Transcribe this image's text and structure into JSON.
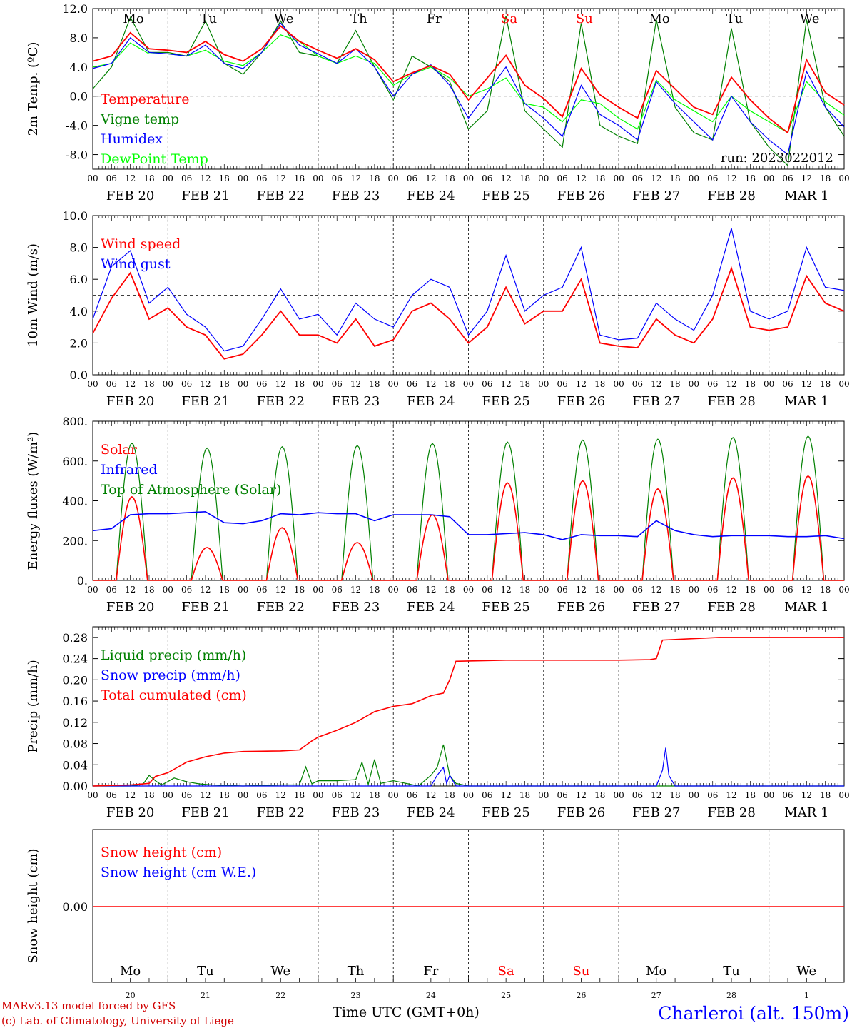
{
  "colors": {
    "temperature": "#ff0000",
    "vigne": "#008000",
    "humidex": "#0000ff",
    "dewpoint": "#00ff00",
    "frame": "#000000",
    "weekend": "#ff0000",
    "snow_cm": "#ff0000",
    "snow_we": "#0000ff",
    "station": "#0000ff"
  },
  "time_axis": {
    "hour_ticks": [
      "00",
      "06",
      "12",
      "18"
    ],
    "date_labels": [
      "FEB 20",
      "FEB 21",
      "FEB 22",
      "FEB 23",
      "FEB 24",
      "FEB 25",
      "FEB 26",
      "FEB 27",
      "FEB 28",
      "MAR  1"
    ],
    "weekdays": [
      "Mo",
      "Tu",
      "We",
      "Th",
      "Fr",
      "Sa",
      "Su",
      "Mo",
      "Tu",
      "We"
    ],
    "weekend_flags": [
      false,
      false,
      false,
      false,
      false,
      true,
      true,
      false,
      false,
      false
    ],
    "day_numbers": [
      "20",
      "21",
      "22",
      "23",
      "24",
      "25",
      "26",
      "27",
      "28",
      "1"
    ],
    "xlabel": "Time UTC (GMT+0h)"
  },
  "footer": {
    "model_line": "MARv3.13 model forced by GFS",
    "lab_line": "(c) Lab. of Climatology, University of Liege",
    "station": "Charleroi (alt. 150m)"
  },
  "chart_data": [
    {
      "type": "line",
      "id": "temperature",
      "ylabel": "2m Temp. (ºC)",
      "ylim": [
        -10,
        12
      ],
      "yticks": [
        "-8.0",
        "-4.0",
        "0.0",
        "4.0",
        "8.0",
        "12.0"
      ],
      "annotation": "run: 2023022012",
      "x_unit": "hours since FEB 20 00 UTC",
      "series": [
        {
          "name": "Temperature",
          "color": "#ff0000",
          "x": [
            0,
            6,
            12,
            18,
            24,
            30,
            36,
            42,
            48,
            54,
            60,
            66,
            72,
            78,
            84,
            90,
            96,
            102,
            108,
            114,
            120,
            126,
            132,
            138,
            144,
            150,
            156,
            162,
            168,
            174,
            180,
            186,
            192,
            198,
            204,
            210,
            216,
            222,
            228,
            234,
            240
          ],
          "y": [
            4.8,
            5.5,
            8.7,
            6.5,
            6.3,
            6.0,
            7.5,
            5.7,
            4.8,
            6.5,
            9.6,
            7.5,
            6.3,
            5.2,
            6.5,
            5.0,
            2.0,
            3.2,
            4.2,
            3.0,
            -0.5,
            2.5,
            5.6,
            1.5,
            -0.3,
            -2.8,
            3.8,
            0.2,
            -1.5,
            -3.0,
            3.5,
            1.0,
            -1.5,
            -2.5,
            2.6,
            -0.5,
            -3.0,
            -5.0,
            5.0,
            0.5,
            -1.2
          ]
        },
        {
          "name": "Vigne temp",
          "color": "#008000",
          "x": [
            0,
            6,
            12,
            18,
            24,
            30,
            36,
            42,
            48,
            54,
            60,
            66,
            72,
            78,
            84,
            90,
            96,
            102,
            108,
            114,
            120,
            126,
            132,
            138,
            144,
            150,
            156,
            162,
            168,
            174,
            180,
            186,
            192,
            198,
            204,
            210,
            216,
            222,
            228,
            234,
            240
          ],
          "y": [
            1.0,
            4.0,
            10.8,
            6.0,
            6.0,
            5.5,
            10.3,
            4.5,
            3.0,
            6.0,
            10.3,
            6.0,
            5.5,
            4.5,
            9.0,
            4.0,
            -0.5,
            5.5,
            4.0,
            2.0,
            -4.5,
            -2.0,
            11.0,
            -2.0,
            -4.5,
            -7.0,
            10.0,
            -4.0,
            -5.5,
            -6.5,
            10.5,
            -1.5,
            -5.0,
            -6.0,
            9.3,
            -3.5,
            -7.0,
            -9.5,
            10.5,
            -1.5,
            -5.5
          ]
        },
        {
          "name": "Humidex",
          "color": "#0000ff",
          "x": [
            0,
            6,
            12,
            18,
            24,
            30,
            36,
            42,
            48,
            54,
            60,
            66,
            72,
            78,
            84,
            90,
            96,
            102,
            108,
            114,
            120,
            126,
            132,
            138,
            144,
            150,
            156,
            162,
            168,
            174,
            180,
            186,
            192,
            198,
            204,
            210,
            216,
            222,
            228,
            234,
            240
          ],
          "y": [
            3.8,
            4.5,
            8.0,
            6.0,
            5.8,
            5.5,
            7.0,
            4.5,
            3.8,
            6.0,
            10.0,
            7.0,
            5.8,
            4.5,
            6.5,
            4.0,
            0.0,
            3.0,
            4.3,
            1.5,
            -3.0,
            0.5,
            4.0,
            -1.0,
            -3.0,
            -5.5,
            1.5,
            -2.5,
            -4.0,
            -6.0,
            2.0,
            -1.0,
            -3.5,
            -6.0,
            0.0,
            -3.5,
            -6.0,
            -8.0,
            3.4,
            -1.5,
            -4.2
          ]
        },
        {
          "name": "DewPoint Temp",
          "color": "#00ff00",
          "x": [
            0,
            6,
            12,
            18,
            24,
            30,
            36,
            42,
            48,
            54,
            60,
            66,
            72,
            78,
            84,
            90,
            96,
            102,
            108,
            114,
            120,
            126,
            132,
            138,
            144,
            150,
            156,
            162,
            168,
            174,
            180,
            186,
            192,
            198,
            204,
            210,
            216,
            222,
            228,
            234,
            240
          ],
          "y": [
            4.0,
            4.5,
            7.3,
            5.8,
            5.8,
            5.5,
            6.3,
            4.8,
            4.2,
            6.0,
            8.4,
            7.5,
            5.5,
            4.5,
            5.5,
            4.5,
            1.5,
            3.0,
            4.0,
            2.5,
            0.0,
            1.0,
            2.5,
            -1.0,
            -1.5,
            -3.5,
            -0.5,
            -1.0,
            -3.0,
            -4.5,
            2.2,
            -0.5,
            -2.0,
            -3.5,
            0.0,
            -2.0,
            -3.5,
            -5.0,
            2.0,
            -0.8,
            -2.6
          ]
        }
      ]
    },
    {
      "type": "line",
      "id": "wind",
      "ylabel": "10m Wind (m/s)",
      "ylim": [
        0,
        10
      ],
      "yticks": [
        "0.0",
        "2.0",
        "4.0",
        "6.0",
        "8.0",
        "10.0"
      ],
      "x_unit": "hours since FEB 20 00 UTC",
      "series": [
        {
          "name": "Wind speed",
          "color": "#ff0000",
          "x": [
            0,
            6,
            12,
            18,
            24,
            30,
            36,
            42,
            48,
            54,
            60,
            66,
            72,
            78,
            84,
            90,
            96,
            102,
            108,
            114,
            120,
            126,
            132,
            138,
            144,
            150,
            156,
            162,
            168,
            174,
            180,
            186,
            192,
            198,
            204,
            210,
            216,
            222,
            228,
            234,
            240
          ],
          "y": [
            2.6,
            4.8,
            6.4,
            3.5,
            4.2,
            3.0,
            2.5,
            1.0,
            1.3,
            2.5,
            4.0,
            2.5,
            2.5,
            2.0,
            3.5,
            1.8,
            2.2,
            4.0,
            4.5,
            3.5,
            2.0,
            3.0,
            5.5,
            3.2,
            4.0,
            4.0,
            6.0,
            2.0,
            1.8,
            1.7,
            3.5,
            2.5,
            2.0,
            3.5,
            6.7,
            3.0,
            2.8,
            3.0,
            6.2,
            4.5,
            4.0
          ]
        },
        {
          "name": "Wind gust",
          "color": "#0000ff",
          "x": [
            0,
            6,
            12,
            18,
            24,
            30,
            36,
            42,
            48,
            54,
            60,
            66,
            72,
            78,
            84,
            90,
            96,
            102,
            108,
            114,
            120,
            126,
            132,
            138,
            144,
            150,
            156,
            162,
            168,
            174,
            180,
            186,
            192,
            198,
            204,
            210,
            216,
            222,
            228,
            234,
            240
          ],
          "y": [
            3.5,
            6.8,
            7.8,
            4.5,
            5.5,
            3.8,
            3.0,
            1.5,
            1.8,
            3.5,
            5.4,
            3.5,
            3.8,
            2.5,
            4.5,
            3.5,
            3.0,
            5.0,
            6.0,
            5.5,
            2.5,
            4.0,
            7.5,
            4.0,
            5.0,
            5.5,
            8.0,
            2.5,
            2.2,
            2.3,
            4.5,
            3.5,
            2.8,
            5.0,
            9.2,
            4.0,
            3.5,
            4.0,
            8.0,
            5.5,
            5.3
          ]
        }
      ]
    },
    {
      "type": "line",
      "id": "energy",
      "ylabel": "Energy fluxes (W/m²)",
      "ylim": [
        0,
        800
      ],
      "yticks": [
        "0.",
        "200.",
        "400.",
        "600.",
        "800."
      ],
      "x_unit": "hours since FEB 20 00 UTC",
      "toa_peaks": [
        690,
        665,
        672,
        678,
        688,
        695,
        705,
        710,
        718,
        725
      ],
      "solar_peaks": [
        420,
        165,
        265,
        190,
        330,
        490,
        500,
        460,
        515,
        525
      ],
      "daylight_hours": [
        7.5,
        17.5
      ],
      "series": [
        {
          "name": "Solar",
          "color": "#ff0000"
        },
        {
          "name": "Infrared",
          "color": "#0000ff",
          "x": [
            0,
            6,
            12,
            18,
            24,
            30,
            36,
            42,
            48,
            54,
            60,
            66,
            72,
            78,
            84,
            90,
            96,
            102,
            108,
            114,
            120,
            126,
            132,
            138,
            144,
            150,
            156,
            162,
            168,
            174,
            180,
            186,
            192,
            198,
            204,
            210,
            216,
            222,
            228,
            234,
            240
          ],
          "y": [
            250,
            260,
            330,
            335,
            335,
            340,
            345,
            290,
            285,
            300,
            335,
            330,
            340,
            335,
            335,
            300,
            330,
            330,
            330,
            320,
            230,
            230,
            235,
            240,
            230,
            205,
            230,
            225,
            225,
            220,
            300,
            250,
            230,
            220,
            225,
            225,
            225,
            220,
            220,
            225,
            210
          ]
        },
        {
          "name": "Top of Atmosphere (Solar)",
          "color": "#008000"
        }
      ]
    },
    {
      "type": "line",
      "id": "precip",
      "ylabel": "Precip (mm/h)",
      "ylim": [
        0,
        0.3
      ],
      "yticks": [
        "0.00",
        "0.04",
        "0.08",
        "0.12",
        "0.16",
        "0.20",
        "0.24",
        "0.28"
      ],
      "x_unit": "hours since FEB 20 00 UTC",
      "series": [
        {
          "name": "Liquid precip (mm/h)",
          "color": "#008000",
          "x": [
            0,
            12,
            16,
            18,
            20,
            22,
            26,
            30,
            34,
            38,
            48,
            60,
            66,
            68,
            70,
            72,
            78,
            84,
            86,
            88,
            90,
            92,
            96,
            104,
            108,
            110,
            112,
            114,
            116,
            120,
            240
          ],
          "y": [
            0,
            0,
            0.003,
            0.02,
            0.01,
            0.002,
            0.015,
            0.008,
            0.004,
            0.002,
            0,
            0.002,
            0.002,
            0.036,
            0.004,
            0.01,
            0.01,
            0.012,
            0.045,
            0.003,
            0.05,
            0.005,
            0.01,
            0,
            0.02,
            0.035,
            0.078,
            0.02,
            0.005,
            0,
            0
          ]
        },
        {
          "name": "Snow precip (mm/h)",
          "color": "#0000ff",
          "x": [
            0,
            108,
            110,
            112,
            113,
            114,
            116,
            180,
            182,
            183,
            184,
            186,
            240
          ],
          "y": [
            0,
            0,
            0.02,
            0.035,
            0.005,
            0.02,
            0,
            0,
            0.03,
            0.072,
            0.02,
            0,
            0
          ]
        },
        {
          "name": "Total cumulated (cm)",
          "color": "#ff0000",
          "x": [
            0,
            12,
            18,
            20,
            24,
            30,
            36,
            42,
            48,
            60,
            66,
            70,
            72,
            78,
            84,
            90,
            96,
            102,
            108,
            112,
            114,
            116,
            132,
            168,
            178,
            180,
            182,
            200,
            240
          ],
          "y": [
            0,
            0.002,
            0.005,
            0.018,
            0.025,
            0.045,
            0.055,
            0.062,
            0.065,
            0.066,
            0.068,
            0.085,
            0.092,
            0.105,
            0.12,
            0.14,
            0.15,
            0.155,
            0.17,
            0.175,
            0.2,
            0.235,
            0.237,
            0.237,
            0.238,
            0.24,
            0.275,
            0.28,
            0.28
          ]
        }
      ]
    },
    {
      "type": "line",
      "id": "snow",
      "ylabel": "Snow height (cm)",
      "ytick": "0.00",
      "series": [
        {
          "name": "Snow height (cm)",
          "color": "#ff0000",
          "constant": 0
        },
        {
          "name": "Snow height (cm W.E.)",
          "color": "#0000ff",
          "constant": 0
        }
      ]
    }
  ]
}
